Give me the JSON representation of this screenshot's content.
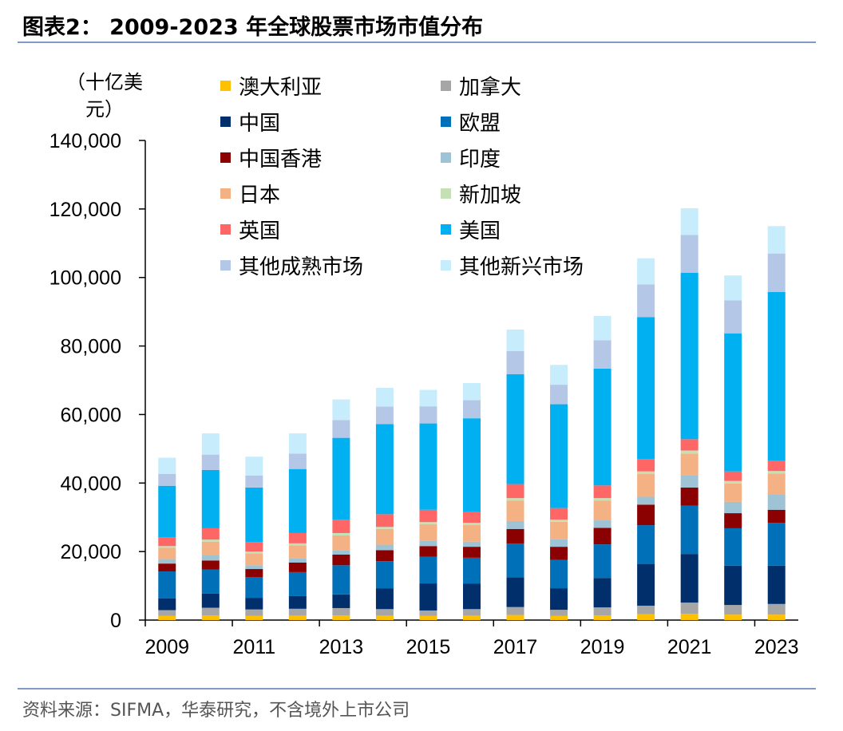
{
  "title": "图表2：  2009-2023 年全球股票市场市值分布",
  "source": "资料来源：SIFMA，华泰研究，不含境外上市公司",
  "chart_data": {
    "type": "bar",
    "stacked": true,
    "y_unit_label": "（十亿美元）",
    "ylim": [
      0,
      140000
    ],
    "y_ticks": [
      "0",
      "20,000",
      "40,000",
      "60,000",
      "80,000",
      "100,000",
      "120,000",
      "140,000"
    ],
    "y_tick_values": [
      0,
      20000,
      40000,
      60000,
      80000,
      100000,
      120000,
      140000
    ],
    "categories": [
      "2009",
      "2010",
      "2011",
      "2012",
      "2013",
      "2014",
      "2015",
      "2016",
      "2017",
      "2018",
      "2019",
      "2020",
      "2021",
      "2022",
      "2023"
    ],
    "x_tick_labels": [
      "2009",
      "2011",
      "2013",
      "2015",
      "2017",
      "2019",
      "2021",
      "2023"
    ],
    "series": [
      {
        "name": "澳大利亚",
        "color": "#ffc000",
        "values": [
          1200,
          1400,
          1200,
          1300,
          1400,
          1300,
          1200,
          1300,
          1500,
          1200,
          1400,
          1700,
          1800,
          1600,
          1600
        ]
      },
      {
        "name": "加拿大",
        "color": "#a6a6a6",
        "values": [
          1700,
          2200,
          1900,
          2000,
          2100,
          1900,
          1600,
          1900,
          2300,
          1800,
          2300,
          2500,
          3300,
          2800,
          3100
        ]
      },
      {
        "name": "中国",
        "color": "#002f6c",
        "values": [
          3400,
          4100,
          3400,
          3700,
          4000,
          6000,
          7900,
          7400,
          8700,
          6300,
          8600,
          12200,
          14200,
          11500,
          11200
        ]
      },
      {
        "name": "欧盟",
        "color": "#0070b8",
        "values": [
          7900,
          7100,
          6000,
          7000,
          8500,
          8000,
          7800,
          7600,
          9800,
          8300,
          9800,
          11300,
          14100,
          10900,
          12500
        ]
      },
      {
        "name": "中国香港",
        "color": "#8b0000",
        "values": [
          2300,
          2600,
          2400,
          2800,
          3100,
          3200,
          3100,
          3200,
          4300,
          3800,
          4800,
          6000,
          5300,
          4400,
          3800
        ]
      },
      {
        "name": "印度",
        "color": "#9dc3d4",
        "values": [
          1300,
          1600,
          1100,
          1300,
          1200,
          1600,
          1500,
          1500,
          2300,
          2300,
          2200,
          2300,
          3600,
          3300,
          4500
        ]
      },
      {
        "name": "日本",
        "color": "#f4b183",
        "values": [
          3300,
          3900,
          3500,
          3700,
          4400,
          4600,
          4900,
          4900,
          6000,
          5000,
          5800,
          6700,
          6300,
          5400,
          6100
        ]
      },
      {
        "name": "新加坡",
        "color": "#c5e0b4",
        "values": [
          500,
          600,
          500,
          600,
          700,
          600,
          600,
          600,
          700,
          600,
          700,
          700,
          900,
          700,
          700
        ]
      },
      {
        "name": "英国",
        "color": "#ff6666",
        "values": [
          2600,
          3300,
          2800,
          3000,
          3900,
          3700,
          3600,
          3100,
          4100,
          3400,
          3700,
          3600,
          3300,
          2800,
          3000
        ]
      },
      {
        "name": "美国",
        "color": "#00b0f0",
        "values": [
          15000,
          17000,
          15900,
          18700,
          23900,
          26300,
          25200,
          27400,
          32100,
          30300,
          34100,
          41400,
          48600,
          40300,
          49300
        ]
      },
      {
        "name": "其他成熟市场",
        "color": "#b4c7e7",
        "values": [
          3500,
          4500,
          3500,
          4500,
          5200,
          5100,
          5000,
          5300,
          6700,
          5700,
          8300,
          9600,
          11000,
          9600,
          11200
        ]
      },
      {
        "name": "其他新兴市场",
        "color": "#c7edfc",
        "values": [
          4700,
          6200,
          5500,
          5900,
          6000,
          5500,
          4800,
          5000,
          6300,
          5800,
          7100,
          7600,
          7800,
          7300,
          8000
        ]
      }
    ],
    "legend_position": "top-center",
    "grid": false
  }
}
